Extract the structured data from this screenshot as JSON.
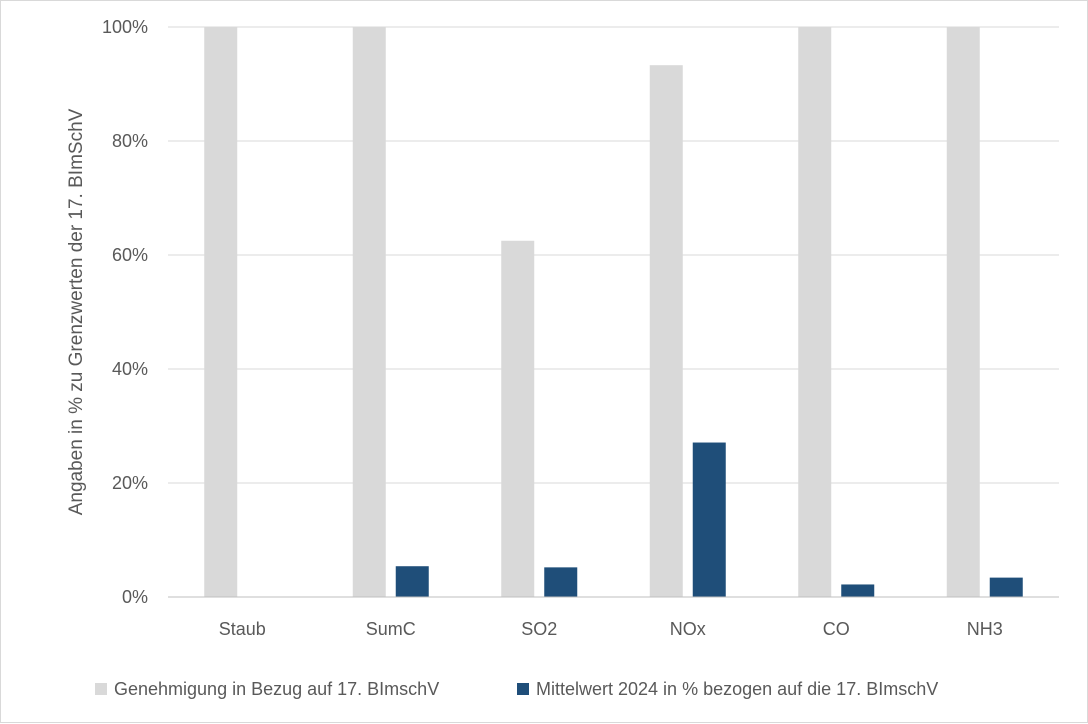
{
  "chart_data": {
    "type": "bar",
    "categories": [
      "Staub",
      "SumC",
      "SO2",
      "NOx",
      "CO",
      "NH3"
    ],
    "series": [
      {
        "name": "Genehmigung in Bezug auf 17. BImschV",
        "color": "#d9d9d9",
        "values": [
          100,
          100,
          62.5,
          93.3,
          100,
          100
        ]
      },
      {
        "name": "Mittelwert 2024 in % bezogen auf die 17. BImschV",
        "color": "#1f4e79",
        "values": [
          0,
          5.4,
          5.2,
          27.1,
          2.2,
          3.4
        ]
      }
    ],
    "title": "",
    "xlabel": "",
    "ylabel": "Angaben in % zu Grenzwerten der 17. BImSchV",
    "ylim": [
      0,
      100
    ],
    "yticks": [
      0,
      20,
      40,
      60,
      80,
      100
    ],
    "ytick_labels": [
      "0%",
      "20%",
      "40%",
      "60%",
      "80%",
      "100%"
    ],
    "grid": true,
    "legend_position": "bottom"
  }
}
